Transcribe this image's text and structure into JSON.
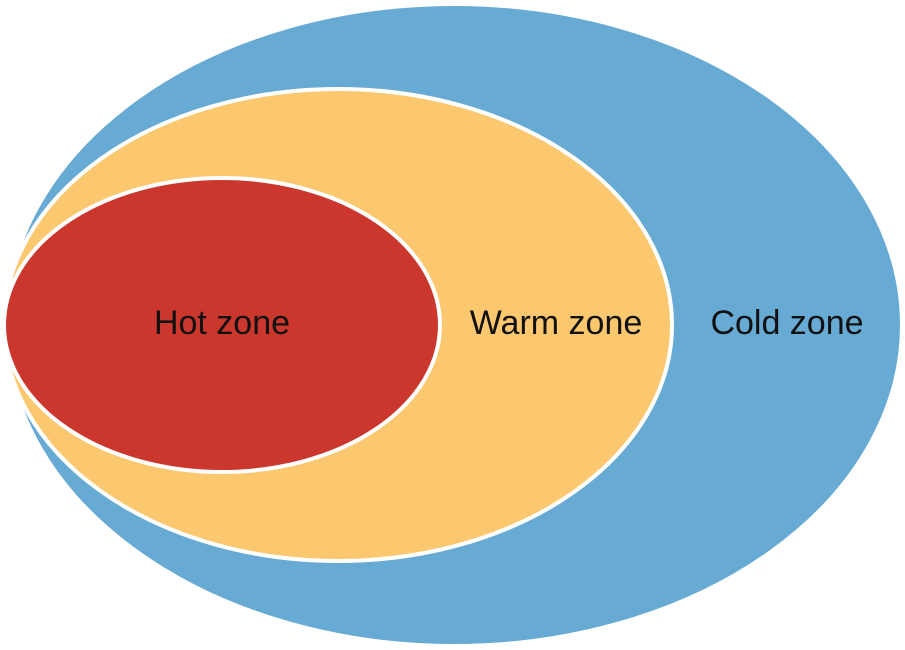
{
  "diagram": {
    "type": "nested-ellipses",
    "zones": [
      {
        "id": "cold",
        "label": "Cold zone",
        "color": "#67abd5"
      },
      {
        "id": "warm",
        "label": "Warm zone",
        "color": "#fcc86f"
      },
      {
        "id": "hot",
        "label": "Hot zone",
        "color": "#cc372d"
      }
    ],
    "border_color": "#ffffff",
    "label_color": "#111111"
  }
}
